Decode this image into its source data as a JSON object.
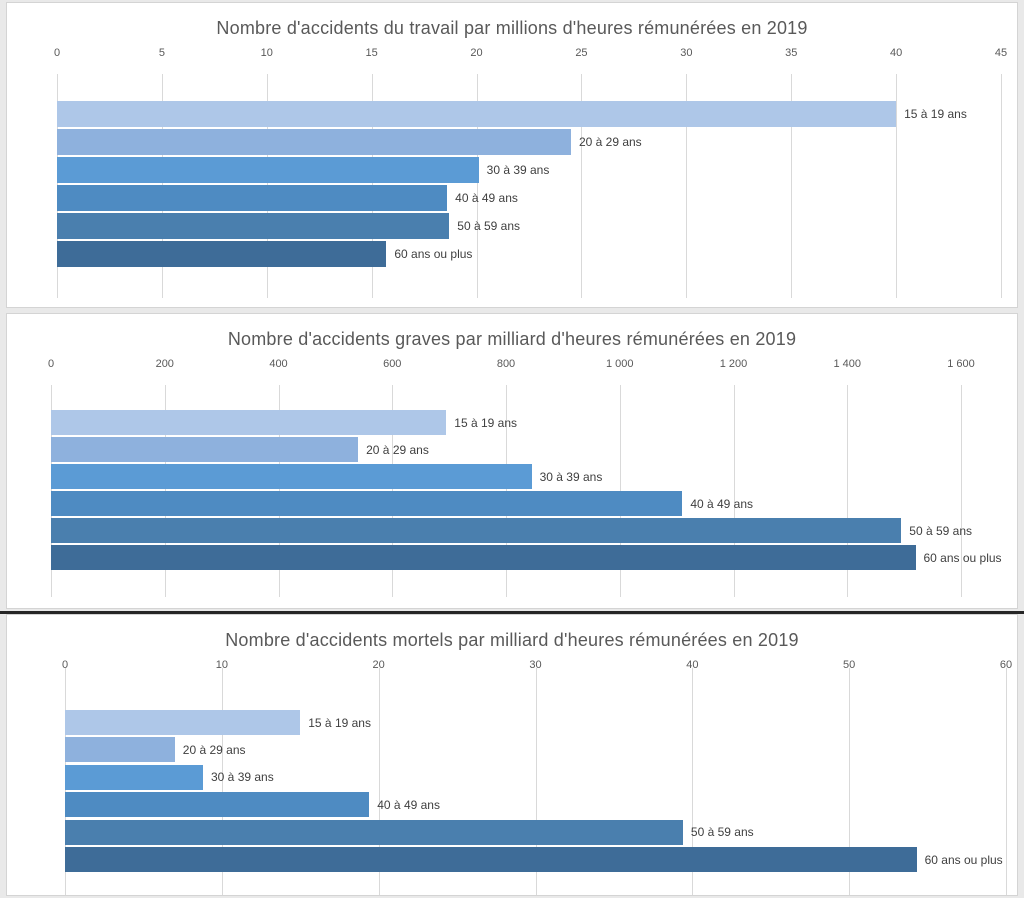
{
  "colors": {
    "bars": [
      "#aec7e8",
      "#8eb1dd",
      "#5b9bd5",
      "#4e8bc2",
      "#4a7fae",
      "#3e6c98"
    ],
    "title_text": "#595959",
    "axis_text": "#595959",
    "label_text": "#3f3f3f",
    "gridline": "#d9d9d9",
    "card_border": "#d4d4d4",
    "page_background": "#e9e9e9",
    "divider": "#262626"
  },
  "chart_data": [
    {
      "type": "bar",
      "orientation": "horizontal",
      "title": "Nombre d'accidents du travail par millions d'heures rémunérées en 2019",
      "categories": [
        "15 à 19 ans",
        "20 à 29 ans",
        "30 à 39 ans",
        "40 à 49 ans",
        "50 à 59 ans",
        "60 ans ou plus"
      ],
      "values": [
        40,
        24.5,
        20.1,
        18.6,
        18.7,
        15.7
      ],
      "xlim": [
        0,
        45
      ],
      "xticks": [
        {
          "label": "0",
          "value": 0
        },
        {
          "label": "5",
          "value": 5
        },
        {
          "label": "10",
          "value": 10
        },
        {
          "label": "15",
          "value": 15
        },
        {
          "label": "20",
          "value": 20
        },
        {
          "label": "25",
          "value": 25
        },
        {
          "label": "30",
          "value": 30
        },
        {
          "label": "35",
          "value": 35
        },
        {
          "label": "40",
          "value": 40
        },
        {
          "label": "45",
          "value": 45
        }
      ],
      "grid": true,
      "legend": "none",
      "category_labels_at_bar_end": true
    },
    {
      "type": "bar",
      "orientation": "horizontal",
      "title": "Nombre d'accidents graves par milliard d'heures rémunérées en 2019",
      "categories": [
        "15 à 19 ans",
        "20 à 29 ans",
        "30 à 39 ans",
        "40 à 49 ans",
        "50 à 59 ans",
        "60 ans ou plus"
      ],
      "values": [
        695,
        540,
        845,
        1110,
        1495,
        1520
      ],
      "xlim": [
        0,
        1600
      ],
      "xticks": [
        {
          "label": "0",
          "value": 0
        },
        {
          "label": "200",
          "value": 200
        },
        {
          "label": "400",
          "value": 400
        },
        {
          "label": "600",
          "value": 600
        },
        {
          "label": "800",
          "value": 800
        },
        {
          "label": "1 000",
          "value": 1000
        },
        {
          "label": "1 200",
          "value": 1200
        },
        {
          "label": "1 400",
          "value": 1400
        },
        {
          "label": "1 600",
          "value": 1600
        }
      ],
      "grid": true,
      "legend": "none",
      "category_labels_at_bar_end": true
    },
    {
      "type": "bar",
      "orientation": "horizontal",
      "title": "Nombre d'accidents mortels par milliard d'heures rémunérées en 2019",
      "categories": [
        "15 à 19 ans",
        "20 à 29 ans",
        "30 à 39 ans",
        "40 à 49 ans",
        "50 à 59 ans",
        "60 ans ou plus"
      ],
      "values": [
        15,
        7,
        8.8,
        19.4,
        39.4,
        54.3
      ],
      "xlim": [
        0,
        60
      ],
      "xticks": [
        {
          "label": "0",
          "value": 0
        },
        {
          "label": "10",
          "value": 10
        },
        {
          "label": "20",
          "value": 20
        },
        {
          "label": "30",
          "value": 30
        },
        {
          "label": "40",
          "value": 40
        },
        {
          "label": "50",
          "value": 50
        },
        {
          "label": "60",
          "value": 60
        }
      ],
      "grid": true,
      "legend": "none",
      "category_labels_at_bar_end": true
    }
  ]
}
